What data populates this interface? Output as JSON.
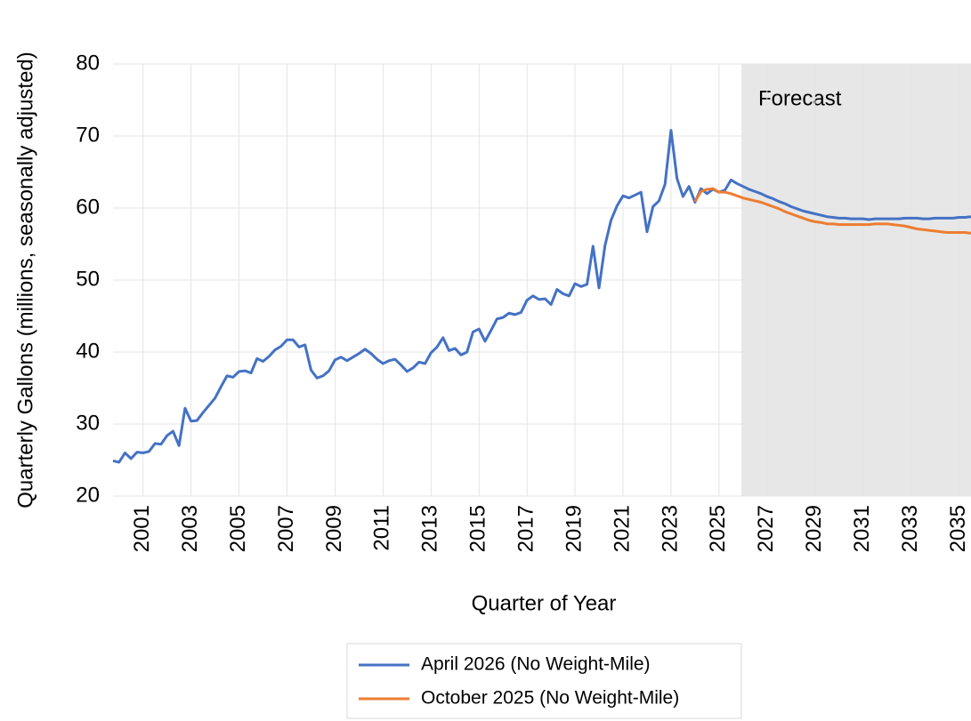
{
  "chart_data": {
    "type": "line",
    "ylabel": "Quarterly Gallons (millions, seasonally adjusted)",
    "xlabel": "Quarter of Year",
    "annotations": [
      "Forecast"
    ],
    "categories": [
      null,
      null,
      null,
      null,
      null,
      "2001",
      null,
      null,
      null,
      null,
      null,
      null,
      null,
      "2003",
      null,
      null,
      null,
      null,
      null,
      null,
      null,
      "2005",
      null,
      null,
      null,
      null,
      null,
      null,
      null,
      "2007",
      null,
      null,
      null,
      null,
      null,
      null,
      null,
      "2009",
      null,
      null,
      null,
      null,
      null,
      null,
      null,
      "2011",
      null,
      null,
      null,
      null,
      null,
      null,
      null,
      "2013",
      null,
      null,
      null,
      null,
      null,
      null,
      null,
      "2015",
      null,
      null,
      null,
      null,
      null,
      null,
      null,
      "2017",
      null,
      null,
      null,
      null,
      null,
      null,
      null,
      "2019",
      null,
      null,
      null,
      null,
      null,
      null,
      null,
      "2021",
      null,
      null,
      null,
      null,
      null,
      null,
      null,
      "2023",
      null,
      null,
      null,
      null,
      null,
      null,
      null,
      "2025",
      null,
      null,
      null,
      null,
      null,
      null,
      null,
      "2027",
      null,
      null,
      null,
      null,
      null,
      null,
      null,
      "2029",
      null,
      null,
      null,
      null,
      null,
      null,
      null,
      "2031",
      null,
      null,
      null,
      null,
      null,
      null,
      null,
      "2033",
      null,
      null,
      null,
      null,
      null,
      null,
      null,
      "2035",
      null,
      null
    ],
    "series": [
      {
        "name": "April 2026 (No Weight-Mile)",
        "color": "#4472c4",
        "values": [
          24.9,
          24.7,
          26.0,
          25.2,
          26.1,
          26.0,
          26.2,
          27.3,
          27.2,
          28.4,
          29.0,
          27.0,
          32.2,
          30.4,
          30.5,
          31.6,
          32.6,
          33.6,
          35.2,
          36.7,
          36.5,
          37.3,
          37.4,
          37.1,
          39.1,
          38.7,
          39.4,
          40.3,
          40.8,
          41.7,
          41.7,
          40.7,
          41.0,
          37.5,
          36.4,
          36.7,
          37.4,
          38.9,
          39.3,
          38.8,
          39.3,
          39.8,
          40.4,
          39.8,
          39.0,
          38.4,
          38.8,
          39.0,
          38.2,
          37.3,
          37.8,
          38.6,
          38.4,
          39.9,
          40.7,
          42.0,
          40.2,
          40.5,
          39.6,
          40.0,
          42.8,
          43.2,
          41.5,
          43.0,
          44.6,
          44.8,
          45.4,
          45.2,
          45.5,
          47.2,
          47.8,
          47.3,
          47.4,
          46.6,
          48.7,
          48.1,
          47.8,
          49.5,
          49.1,
          49.4,
          54.7,
          48.9,
          54.8,
          58.3,
          60.3,
          61.7,
          61.4,
          61.8,
          62.2,
          56.7,
          60.2,
          61.0,
          63.3,
          70.8,
          64.1,
          61.6,
          63.0,
          60.8,
          62.7,
          62.0,
          62.6,
          62.2,
          62.5,
          63.9,
          63.4,
          63.0,
          62.6,
          62.3,
          62.0,
          61.6,
          61.3,
          60.9,
          60.6,
          60.2,
          59.9,
          59.6,
          59.4,
          59.2,
          59.0,
          58.8,
          58.7,
          58.6,
          58.6,
          58.5,
          58.5,
          58.5,
          58.4,
          58.5,
          58.5,
          58.5,
          58.5,
          58.5,
          58.6,
          58.6,
          58.6,
          58.5,
          58.5,
          58.6,
          58.6,
          58.6,
          58.6,
          58.7,
          58.7,
          58.8
        ]
      },
      {
        "name": "October 2025 (No Weight-Mile)",
        "color": "#ed7d31",
        "values": [
          null,
          null,
          null,
          null,
          null,
          null,
          null,
          null,
          null,
          null,
          null,
          null,
          null,
          null,
          null,
          null,
          null,
          null,
          null,
          null,
          null,
          null,
          null,
          null,
          null,
          null,
          null,
          null,
          null,
          null,
          null,
          null,
          null,
          null,
          null,
          null,
          null,
          null,
          null,
          null,
          null,
          null,
          null,
          null,
          null,
          null,
          null,
          null,
          null,
          null,
          null,
          null,
          null,
          null,
          null,
          null,
          null,
          null,
          null,
          null,
          null,
          null,
          null,
          null,
          null,
          null,
          null,
          null,
          null,
          null,
          null,
          null,
          null,
          null,
          null,
          null,
          null,
          null,
          null,
          null,
          null,
          null,
          null,
          null,
          null,
          null,
          null,
          null,
          null,
          null,
          null,
          null,
          null,
          null,
          null,
          null,
          null,
          60.9,
          62.3,
          62.6,
          62.7,
          62.2,
          62.2,
          62.0,
          61.7,
          61.4,
          61.2,
          61.0,
          60.8,
          60.5,
          60.2,
          59.9,
          59.5,
          59.2,
          58.9,
          58.6,
          58.3,
          58.1,
          58.0,
          57.8,
          57.8,
          57.7,
          57.7,
          57.7,
          57.7,
          57.7,
          57.7,
          57.8,
          57.8,
          57.8,
          57.7,
          57.6,
          57.5,
          57.3,
          57.1,
          57.0,
          56.9,
          56.8,
          56.7,
          56.6,
          56.6,
          56.6,
          56.6,
          56.5
        ]
      }
    ],
    "ylim": [
      20,
      80
    ],
    "yticks": [
      20,
      30,
      40,
      50,
      60,
      70,
      80
    ],
    "grid": true
  }
}
